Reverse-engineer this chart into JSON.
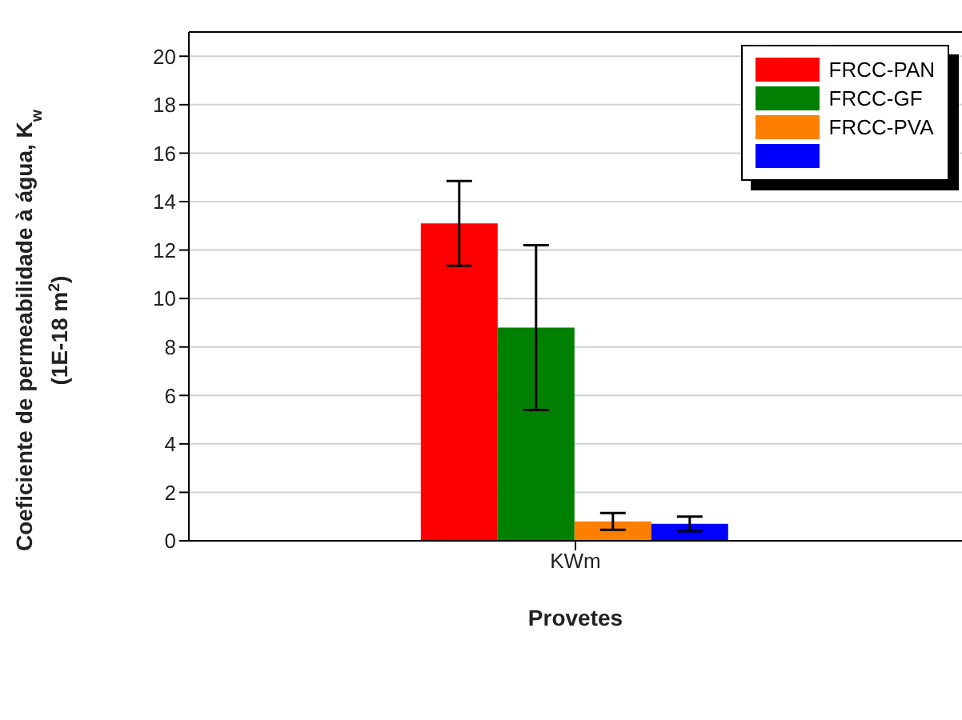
{
  "chart_data": {
    "type": "bar",
    "xlabel": "Provetes",
    "ylabel": "Coeficiente de permeabilidade à água, K$_{w}$\n(1E-18 m$^{2}$)",
    "categories": [
      "KWm"
    ],
    "series": [
      {
        "name": "FRCC-PAN",
        "color": "#ff0000",
        "values": [
          13.1
        ],
        "errors": [
          1.75
        ]
      },
      {
        "name": "FRCC-GF",
        "color": "#008000",
        "values": [
          8.8
        ],
        "errors": [
          3.4
        ]
      },
      {
        "name": "FRCC-PVA",
        "color": "#ff8000",
        "values": [
          0.8
        ],
        "errors": [
          0.35
        ]
      },
      {
        "color": "#0000ff",
        "values": [
          0.7
        ],
        "errors": [
          0.3
        ]
      }
    ],
    "ylim": [
      0,
      21
    ],
    "yticks": [
      0,
      2,
      4,
      6,
      8,
      10,
      12,
      14,
      16,
      18,
      20
    ],
    "grid": "y",
    "legend": "top right"
  }
}
